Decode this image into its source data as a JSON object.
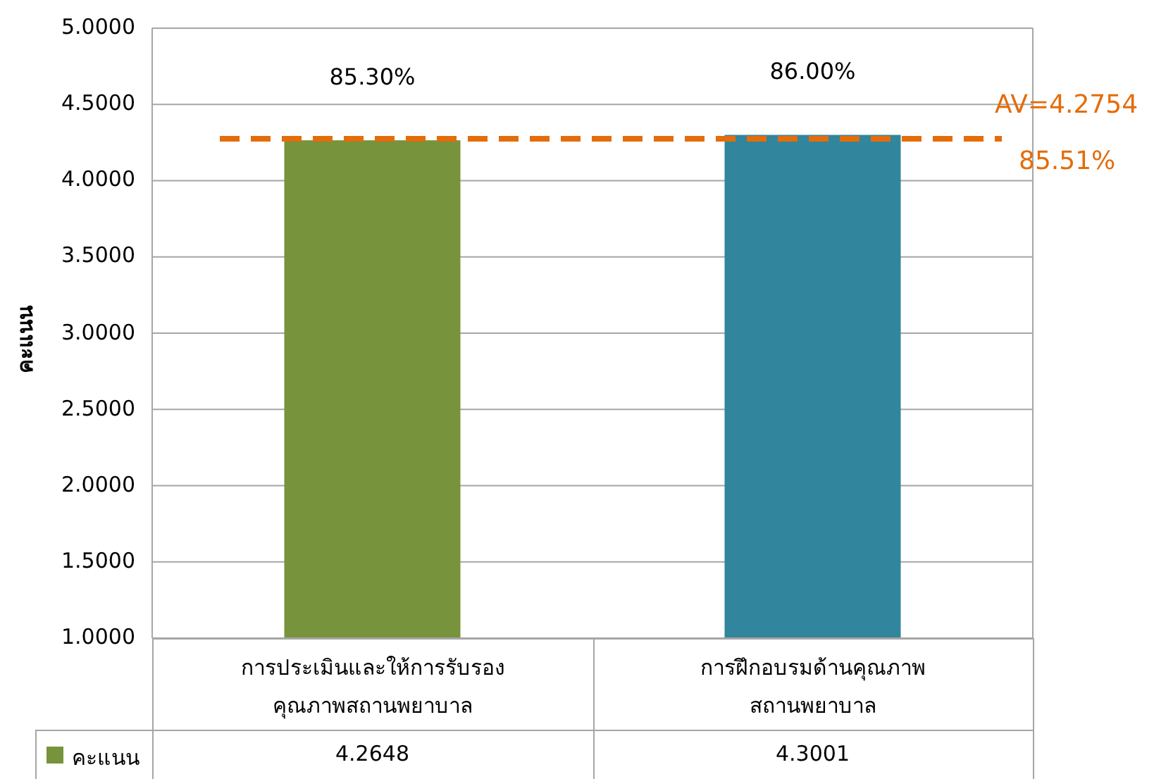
{
  "chart_data": {
    "type": "bar",
    "ylabel": "คะแนน",
    "categories": [
      "การประเมินและให้การรับรอง คุณภาพสถานพยาบาล",
      "การฝึกอบรมด้านคุณภาพ สถานพยาบาล"
    ],
    "series": [
      {
        "name": "คะแนน",
        "color": "#77933c",
        "colors": [
          "#77933c",
          "#31859c"
        ],
        "values": [
          4.2648,
          4.3001
        ]
      }
    ],
    "ylim": [
      1,
      5
    ],
    "yticks": [
      {
        "value": 1,
        "label": "1.0000"
      },
      {
        "value": 1.5,
        "label": "1.5000"
      },
      {
        "value": 2,
        "label": "2.0000"
      },
      {
        "value": 2.5,
        "label": "2.5000"
      },
      {
        "value": 3,
        "label": "3.0000"
      },
      {
        "value": 3.5,
        "label": "3.5000"
      },
      {
        "value": 4,
        "label": "4.0000"
      },
      {
        "value": 4.5,
        "label": "4.5000"
      },
      {
        "value": 5,
        "label": "5.0000"
      }
    ],
    "grid": "y",
    "legend": "bottom",
    "data_labels": true,
    "ref_lines": [
      {
        "axis": "y",
        "value": 4.2754,
        "label": "AV=4.2754",
        "color": "#e46c0a",
        "line_style": "dashed"
      }
    ],
    "annotations": [
      {
        "text": "85.30%",
        "x": "การประเมินและให้การรับรอง คุณภาพสถานพยาบาล",
        "y": 4.2648
      },
      {
        "text": "86.00%",
        "x": "การฝึกอบรมด้านคุณภาพ สถานพยาบาล",
        "y": 4.3001
      },
      "85.51%"
    ]
  }
}
